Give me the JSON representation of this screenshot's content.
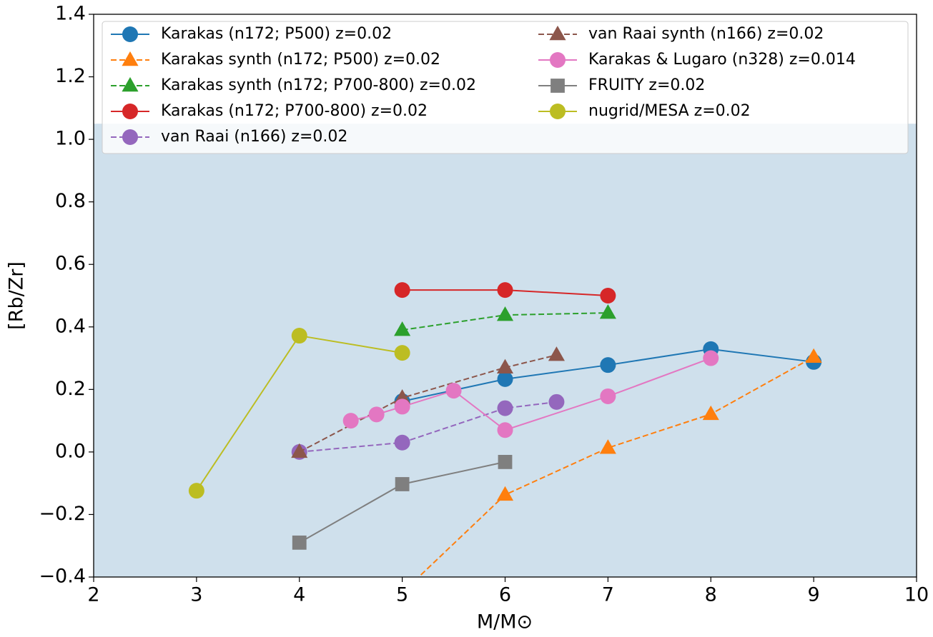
{
  "chart_data": {
    "type": "line",
    "xlabel": "M/M⊙",
    "ylabel": "[Rb/Zr]",
    "xlim": [
      2,
      10
    ],
    "xticks": [
      2,
      3,
      4,
      5,
      6,
      7,
      8,
      9,
      10
    ],
    "ylim": [
      -0.4,
      1.4
    ],
    "yticks": [
      {
        "value": -0.4,
        "label": "−0.4"
      },
      {
        "value": -0.2,
        "label": "−0.2"
      },
      {
        "value": 0,
        "label": "0.0"
      },
      0.2,
      0.4,
      0.6,
      0.8,
      {
        "value": 1,
        "label": "1.0"
      },
      1.2,
      1.4
    ],
    "shaded_region": {
      "ylim": [
        -0.4,
        1.05
      ],
      "color": "#cfe0ec"
    },
    "legend": "upper left",
    "series": [
      {
        "name": "Karakas (n172; P500) z=0.02",
        "color": "#1f77b4",
        "marker": "circle",
        "linestyle": "solid",
        "x": [
          5,
          6,
          7,
          8,
          9
        ],
        "values": [
          0.162,
          0.233,
          0.278,
          0.329,
          0.288
        ]
      },
      {
        "name": "Karakas synth (n172; P500) z=0.02",
        "color": "#ff7f0e",
        "marker": "triangle",
        "linestyle": "dashed",
        "x": [
          5,
          6,
          7,
          8,
          9
        ],
        "values": [
          -0.45,
          -0.137,
          0.013,
          0.121,
          0.304
        ]
      },
      {
        "name": "Karakas synth (n172; P700-800) z=0.02",
        "color": "#2ca02c",
        "marker": "triangle",
        "linestyle": "dashed",
        "x": [
          5,
          6,
          7
        ],
        "values": [
          0.39,
          0.438,
          0.445
        ]
      },
      {
        "name": "Karakas (n172; P700-800) z=0.02",
        "color": "#d62728",
        "marker": "circle",
        "linestyle": "solid",
        "x": [
          5,
          6,
          7
        ],
        "values": [
          0.518,
          0.518,
          0.5
        ]
      },
      {
        "name": "van Raai (n166) z=0.02",
        "color": "#9467bd",
        "marker": "circle",
        "linestyle": "dashed",
        "x": [
          4,
          5,
          6,
          6.5
        ],
        "values": [
          0,
          0.03,
          0.14,
          0.16
        ]
      },
      {
        "name": "van Raai synth (n166) z=0.02",
        "color": "#8c564b",
        "marker": "triangle",
        "linestyle": "dashed",
        "x": [
          4,
          5,
          6,
          6.5
        ],
        "values": [
          0,
          0.173,
          0.27,
          0.31
        ]
      },
      {
        "name": "Karakas & Lugaro (n328) z=0.014",
        "color": "#e377c2",
        "marker": "circle",
        "linestyle": "solid",
        "x": [
          4.5,
          4.75,
          5,
          5.5,
          6,
          7,
          8
        ],
        "values": [
          0.1,
          0.12,
          0.145,
          0.196,
          0.07,
          0.178,
          0.3
        ]
      },
      {
        "name": "FRUITY z=0.02",
        "color": "#7f7f7f",
        "marker": "square",
        "linestyle": "solid",
        "x": [
          4,
          5,
          6
        ],
        "values": [
          -0.29,
          -0.103,
          -0.032
        ]
      },
      {
        "name": "nugrid/MESA z=0.02",
        "color": "#bcbd22",
        "marker": "circle",
        "linestyle": "solid",
        "x": [
          3,
          4,
          5
        ],
        "values": [
          -0.124,
          0.372,
          0.317
        ]
      }
    ]
  }
}
